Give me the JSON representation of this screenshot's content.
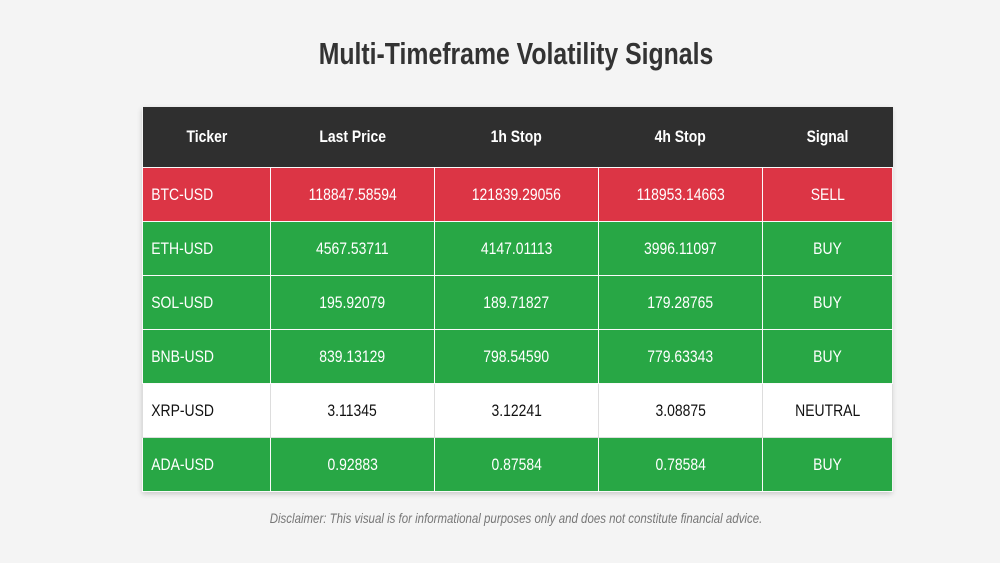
{
  "title": "Multi-Timeframe Volatility Signals",
  "disclaimer": "Disclaimer: This visual is for informational purposes only and does not constitute financial advice.",
  "colors": {
    "header_bg": "#2f2f2f",
    "sell": "#dc3545",
    "buy": "#28a745",
    "neutral": "#ffffff",
    "text_light": "#ffffff",
    "text_dark": "#111111"
  },
  "chart_data": {
    "type": "table",
    "title": "Multi-Timeframe Volatility Signals",
    "columns": [
      "Ticker",
      "Last Price",
      "1h Stop",
      "4h Stop",
      "Signal"
    ],
    "rows": [
      {
        "ticker": "BTC-USD",
        "last_price": "118847.58594",
        "stop_1h": "121839.29056",
        "stop_4h": "118953.14663",
        "signal": "SELL"
      },
      {
        "ticker": "ETH-USD",
        "last_price": "4567.53711",
        "stop_1h": "4147.01113",
        "stop_4h": "3996.11097",
        "signal": "BUY"
      },
      {
        "ticker": "SOL-USD",
        "last_price": "195.92079",
        "stop_1h": "189.71827",
        "stop_4h": "179.28765",
        "signal": "BUY"
      },
      {
        "ticker": "BNB-USD",
        "last_price": "839.13129",
        "stop_1h": "798.54590",
        "stop_4h": "779.63343",
        "signal": "BUY"
      },
      {
        "ticker": "XRP-USD",
        "last_price": "3.11345",
        "stop_1h": "3.12241",
        "stop_4h": "3.08875",
        "signal": "NEUTRAL"
      },
      {
        "ticker": "ADA-USD",
        "last_price": "0.92883",
        "stop_1h": "0.87584",
        "stop_4h": "0.78584",
        "signal": "BUY"
      }
    ]
  }
}
